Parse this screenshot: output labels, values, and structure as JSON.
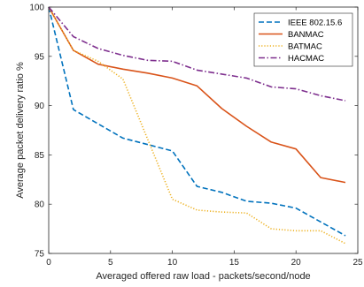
{
  "chart_data": {
    "type": "line",
    "title": "",
    "xlabel": "Averaged offered raw load - packets/second/node",
    "ylabel": "Average packet delivery ratio %",
    "xlim": [
      0,
      25
    ],
    "ylim": [
      75,
      100
    ],
    "xticks": [
      0,
      5,
      10,
      15,
      20,
      25
    ],
    "yticks": [
      75,
      80,
      85,
      90,
      95,
      100
    ],
    "grid": false,
    "legend_position": "top-right",
    "series": [
      {
        "name": "IEEE 802.15.6",
        "color": "#0072BD",
        "dash": "dashed",
        "x": [
          0,
          2,
          6,
          10,
          12,
          14,
          16,
          18,
          20,
          22,
          24
        ],
        "y": [
          100,
          89.6,
          86.7,
          85.4,
          81.8,
          81.2,
          80.3,
          80.1,
          79.6,
          78.2,
          76.8
        ]
      },
      {
        "name": "BANMAC",
        "color": "#D95319",
        "dash": "solid",
        "x": [
          0,
          2,
          4,
          6,
          8,
          10,
          12,
          14,
          16,
          18,
          20,
          22,
          24
        ],
        "y": [
          100,
          95.6,
          94.2,
          93.7,
          93.3,
          92.8,
          92.0,
          89.7,
          87.9,
          86.3,
          85.6,
          82.7,
          82.2
        ]
      },
      {
        "name": "BATMAC",
        "color": "#EDB120",
        "dash": "dotted",
        "x": [
          0,
          2,
          4,
          6,
          10,
          12,
          14,
          16,
          18,
          20,
          22,
          24
        ],
        "y": [
          100,
          95.6,
          94.5,
          92.7,
          80.5,
          79.4,
          79.2,
          79.1,
          77.5,
          77.3,
          77.3,
          76.0
        ]
      },
      {
        "name": "HACMAC",
        "color": "#7E2F8E",
        "dash": "dashdot",
        "x": [
          0,
          2,
          4,
          6,
          8,
          10,
          12,
          14,
          16,
          18,
          20,
          22,
          24
        ],
        "y": [
          100,
          97.0,
          95.8,
          95.1,
          94.6,
          94.5,
          93.6,
          93.2,
          92.8,
          91.9,
          91.7,
          91.0,
          90.5
        ]
      }
    ]
  }
}
